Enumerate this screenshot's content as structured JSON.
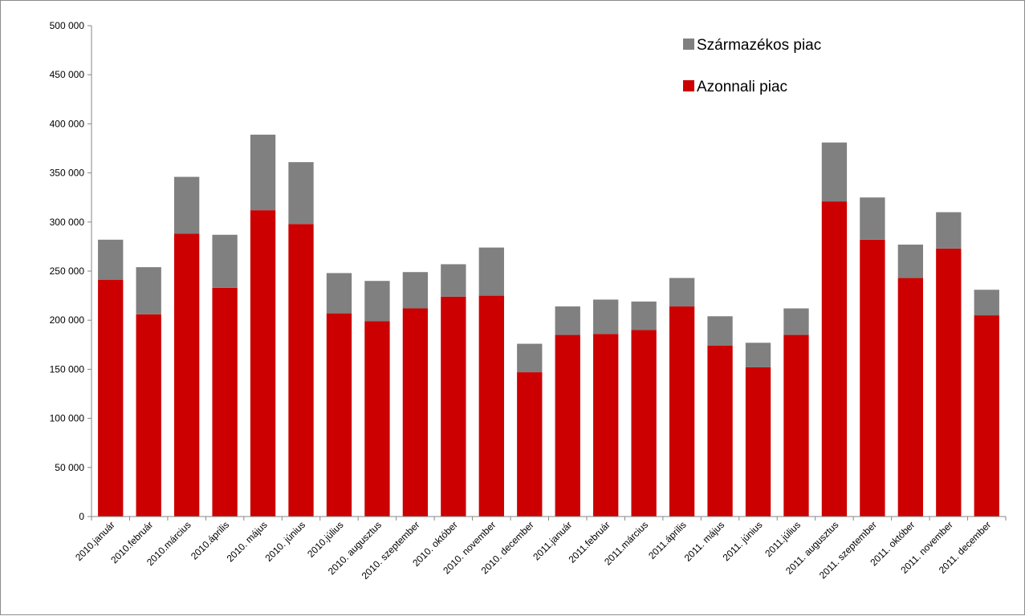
{
  "chart_data": {
    "type": "bar",
    "stacked": true,
    "categories": [
      "2010.január",
      "2010.február",
      "2010.március",
      "2010.április",
      "2010. május",
      "2010. június",
      "2010.július",
      "2010. augusztus",
      "2010. szeptember",
      "2010. október",
      "2010. november",
      "2010. december",
      "2011.január",
      "2011.február",
      "2011.március",
      "2011.április",
      "2011. május",
      "2011. június",
      "2011.július",
      "2011. augusztus",
      "2011. szeptember",
      "2011. október",
      "2011. november",
      "2011. december"
    ],
    "series": [
      {
        "name": "Azonnali piac",
        "color": "#cc0000",
        "values": [
          241000,
          206000,
          288000,
          233000,
          312000,
          298000,
          207000,
          199000,
          212000,
          224000,
          225000,
          147000,
          185000,
          186000,
          190000,
          214000,
          174000,
          152000,
          185000,
          321000,
          282000,
          243000,
          273000,
          205000
        ]
      },
      {
        "name": "Származékos piac",
        "color": "#808080",
        "values": [
          41000,
          48000,
          58000,
          54000,
          77000,
          63000,
          41000,
          41000,
          37000,
          33000,
          49000,
          29000,
          29000,
          35000,
          29000,
          29000,
          30000,
          25000,
          27000,
          60000,
          43000,
          34000,
          37000,
          26000
        ]
      }
    ],
    "ylim": [
      0,
      500000
    ],
    "yticks": [
      0,
      50000,
      100000,
      150000,
      200000,
      250000,
      300000,
      350000,
      400000,
      450000,
      500000
    ],
    "ytick_labels": [
      "0",
      "50 000",
      "100 000",
      "150 000",
      "200 000",
      "250 000",
      "300 000",
      "350 000",
      "400 000",
      "450 000",
      "500 000"
    ],
    "legend": {
      "position": "top-right",
      "entries": [
        {
          "label": "Származékos piac",
          "color": "#808080"
        },
        {
          "label": "Azonnali piac",
          "color": "#cc0000"
        }
      ]
    },
    "grid": false,
    "title": "",
    "xlabel": "",
    "ylabel": ""
  }
}
